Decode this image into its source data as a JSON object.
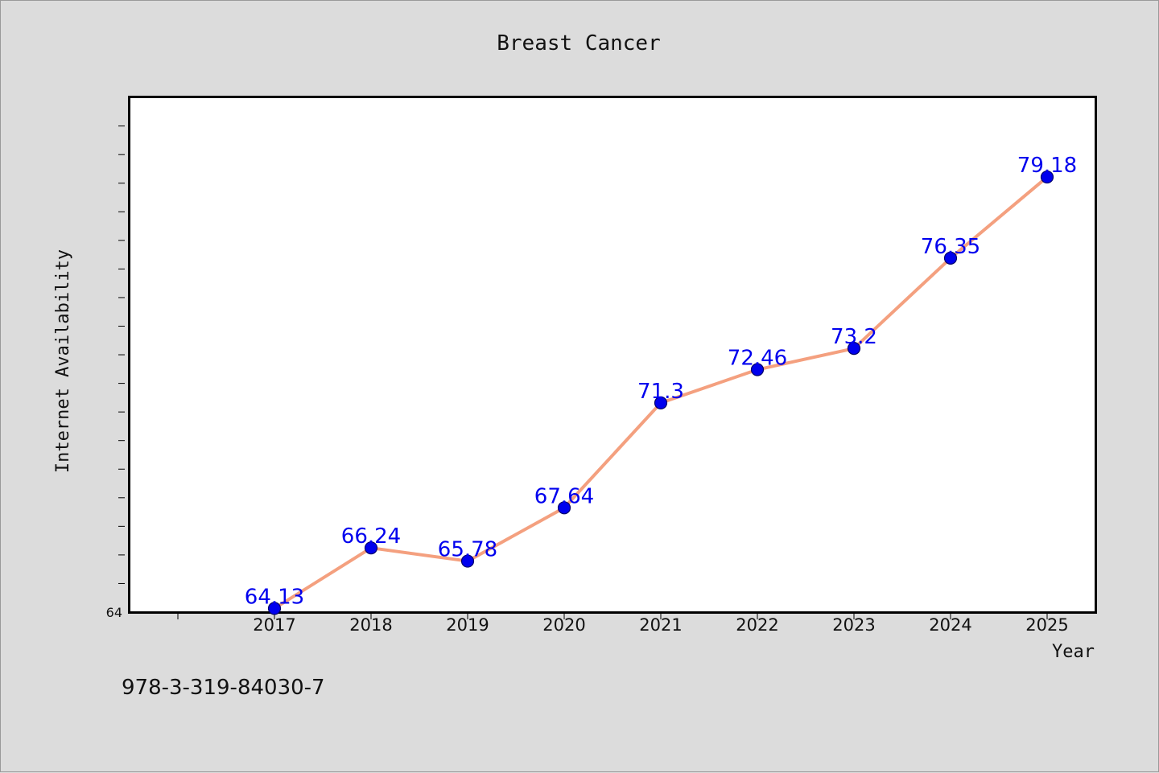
{
  "chart_data": {
    "type": "line",
    "title": "Breast Cancer",
    "xlabel": "Year",
    "ylabel": "Internet Availability",
    "categories": [
      "2017",
      "2018",
      "2019",
      "2020",
      "2021",
      "2022",
      "2023",
      "2024",
      "2025"
    ],
    "series": [
      {
        "values": [
          64.13,
          66.24,
          65.78,
          67.64,
          71.3,
          72.46,
          73.2,
          76.35,
          79.18
        ],
        "line_color": "#f4a07f",
        "marker_color": "#0000ee"
      }
    ],
    "data_labels": [
      "64.13",
      "66.24",
      "65.78",
      "67.64",
      "71.3",
      "72.46",
      "73.2",
      "76.35",
      "79.18"
    ],
    "y_tick_label": "64",
    "ylim": [
      64,
      81.96
    ],
    "grid": false
  },
  "footnote": "978-3-319-84030-7"
}
